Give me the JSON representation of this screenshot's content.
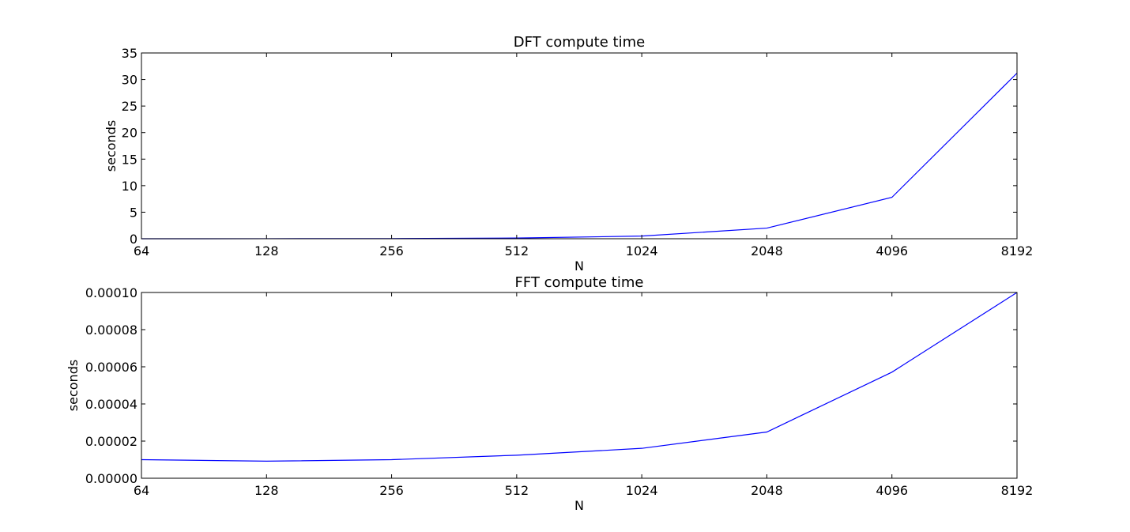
{
  "colors": {
    "series": "#0000ff",
    "axes": "#000000",
    "background": "#ffffff"
  },
  "chart_data": [
    {
      "type": "line",
      "title": "DFT compute time",
      "xlabel": "N",
      "ylabel": "seconds",
      "x_scale": "log2",
      "x": [
        64,
        128,
        256,
        512,
        1024,
        2048,
        4096,
        8192
      ],
      "x_tick_labels": [
        "64",
        "128",
        "256",
        "512",
        "1024",
        "2048",
        "4096",
        "8192"
      ],
      "y_ticks": [
        0,
        5,
        10,
        15,
        20,
        25,
        30,
        35
      ],
      "y_tick_labels": [
        "0",
        "5",
        "10",
        "15",
        "20",
        "25",
        "30",
        "35"
      ],
      "ylim": [
        0,
        35
      ],
      "grid": false,
      "series": [
        {
          "values": [
            0.002,
            0.008,
            0.03,
            0.13,
            0.5,
            2.0,
            7.8,
            31.2
          ]
        }
      ]
    },
    {
      "type": "line",
      "title": "FFT compute time",
      "xlabel": "N",
      "ylabel": "seconds",
      "x_scale": "log2",
      "x": [
        64,
        128,
        256,
        512,
        1024,
        2048,
        4096,
        8192
      ],
      "x_tick_labels": [
        "64",
        "128",
        "256",
        "512",
        "1024",
        "2048",
        "4096",
        "8192"
      ],
      "y_ticks": [
        0,
        2e-05,
        4e-05,
        6e-05,
        8e-05,
        0.0001
      ],
      "y_tick_labels": [
        "0.00000",
        "0.00002",
        "0.00004",
        "0.00006",
        "0.00008",
        "0.00010"
      ],
      "ylim": [
        0,
        0.0001
      ],
      "grid": false,
      "series": [
        {
          "values": [
            1e-05,
            9.2e-06,
            1e-05,
            1.24e-05,
            1.61e-05,
            2.49e-05,
            5.71e-05,
            0.0001
          ]
        }
      ]
    }
  ]
}
